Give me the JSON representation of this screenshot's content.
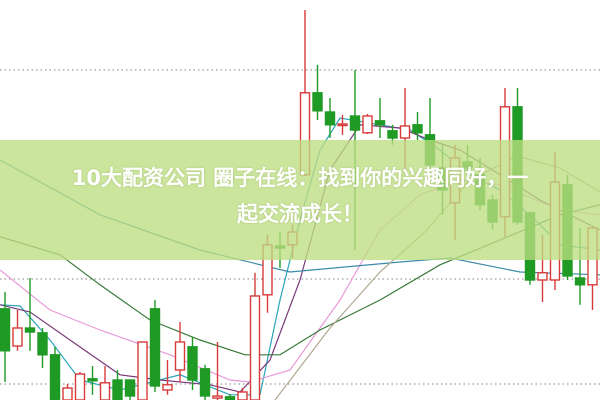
{
  "headline": {
    "line1": "10大配资公司 圈子在线：找到你的兴趣同好，一",
    "line2": "起交流成长！"
  },
  "chart_data": {
    "type": "candlestick",
    "title": "",
    "xlabel": "",
    "ylabel": "",
    "ylim": [
      0,
      100
    ],
    "grid": {
      "style": "dotted",
      "values": [
        82.5,
        30.25,
        4
      ]
    },
    "colors": {
      "up": "#d83a3a",
      "down": "#1f9a24",
      "grid": "#9a9a9a",
      "banner": "#bede82"
    },
    "candles_ohlc": [
      [
        22.8,
        27,
        4.5,
        12.3
      ],
      [
        13.5,
        22.5,
        12.3,
        18
      ],
      [
        18,
        30.5,
        12.3,
        17
      ],
      [
        16.8,
        18,
        8,
        11.3
      ],
      [
        11.3,
        13.3,
        0,
        0
      ],
      [
        0,
        4,
        0,
        3
      ],
      [
        0,
        7,
        0,
        6.5
      ],
      [
        5.3,
        8.5,
        1.3,
        4.8
      ],
      [
        0,
        8.5,
        0,
        4.3
      ],
      [
        5,
        7.5,
        0,
        0
      ],
      [
        5,
        5,
        0,
        1
      ],
      [
        0,
        14.5,
        0,
        14.5
      ],
      [
        22.8,
        25,
        2,
        3.5
      ],
      [
        2.5,
        10,
        1.3,
        3.8
      ],
      [
        7.5,
        19.5,
        4.5,
        14.5
      ],
      [
        13.3,
        15.8,
        2.5,
        5
      ],
      [
        7.8,
        8.8,
        0,
        1
      ],
      [
        0.5,
        14.5,
        0,
        1
      ],
      [
        0.8,
        1.5,
        0,
        0
      ],
      [
        0,
        3,
        0,
        2
      ],
      [
        0,
        31.8,
        0,
        26
      ],
      [
        26.3,
        41.3,
        21.8,
        38.8
      ],
      [
        38.5,
        42,
        33,
        38
      ],
      [
        38.8,
        43.8,
        35.5,
        42
      ],
      [
        56.3,
        97.5,
        56,
        76.8
      ],
      [
        76.8,
        83.8,
        70,
        72.3
      ],
      [
        72,
        75.5,
        65.5,
        68.8
      ],
      [
        68.8,
        71.3,
        66.3,
        69
      ],
      [
        71,
        82.5,
        37.5,
        67.5
      ],
      [
        66.8,
        71.5,
        66.5,
        71
      ],
      [
        69.8,
        75.5,
        65.5,
        68.8
      ],
      [
        67.3,
        68.8,
        63.8,
        65.5
      ],
      [
        65.5,
        78,
        56.3,
        68.5
      ],
      [
        68.8,
        72,
        65,
        66.8
      ],
      [
        66.3,
        75.5,
        57.5,
        58.8
      ],
      [
        58,
        63.8,
        46.3,
        52.5
      ],
      [
        49.3,
        63.8,
        40,
        60.5
      ],
      [
        59.5,
        63.8,
        55,
        58
      ],
      [
        56.3,
        60.5,
        47.5,
        48.8
      ],
      [
        50,
        51.3,
        42.5,
        44.5
      ],
      [
        45.8,
        78,
        40.8,
        73.3
      ],
      [
        73.3,
        78,
        43.8,
        44.5
      ],
      [
        46.8,
        46.8,
        28.8,
        30
      ],
      [
        30,
        41.3,
        24.5,
        31.8
      ],
      [
        30,
        62,
        27.5,
        54.5
      ],
      [
        53.8,
        56.3,
        30,
        31
      ],
      [
        30.5,
        43,
        23.8,
        28.8
      ],
      [
        28.8,
        43,
        22.5,
        43
      ]
    ],
    "moving_averages": [
      {
        "color": "#2aa6b8",
        "points": [
          [
            -0.4,
            23.8
          ],
          [
            1.2,
            23.5
          ],
          [
            3.6,
            15
          ],
          [
            6,
            5
          ],
          [
            9.2,
            2.5
          ],
          [
            14,
            6.3
          ],
          [
            18,
            1.3
          ],
          [
            20.4,
            1.3
          ],
          [
            22,
            25
          ],
          [
            23.6,
            45
          ],
          [
            25.2,
            62.5
          ],
          [
            26.8,
            70.5
          ],
          [
            30,
            68.8
          ],
          [
            32.4,
            67.5
          ],
          [
            34.8,
            62.5
          ],
          [
            37.2,
            56.3
          ],
          [
            39.6,
            52.5
          ],
          [
            42,
            46.3
          ],
          [
            44.4,
            38.8
          ],
          [
            47.6,
            37.5
          ]
        ]
      },
      {
        "color": "#7a3a7a",
        "points": [
          [
            -0.4,
            23.8
          ],
          [
            2,
            22
          ],
          [
            5.2,
            15
          ],
          [
            9.2,
            6.3
          ],
          [
            12.4,
            5
          ],
          [
            16.4,
            3.8
          ],
          [
            18.8,
            2
          ],
          [
            21.2,
            10
          ],
          [
            23.6,
            30
          ],
          [
            26,
            57.5
          ],
          [
            28.4,
            68.8
          ],
          [
            31.6,
            68
          ],
          [
            34,
            65
          ],
          [
            36.4,
            62.5
          ],
          [
            39.6,
            56.3
          ],
          [
            42.8,
            50
          ],
          [
            47.6,
            42.5
          ]
        ]
      },
      {
        "color": "#e89ad8",
        "points": [
          [
            -0.4,
            32.5
          ],
          [
            3.6,
            22.5
          ],
          [
            7.6,
            17.5
          ],
          [
            13.2,
            11.3
          ],
          [
            18,
            5
          ],
          [
            19.6,
            4.5
          ],
          [
            22.8,
            7.5
          ],
          [
            26.8,
            25
          ],
          [
            30,
            42.5
          ],
          [
            33.2,
            51.3
          ],
          [
            36.4,
            55
          ],
          [
            39.6,
            53.8
          ],
          [
            44.4,
            47.5
          ],
          [
            47.6,
            46.3
          ]
        ]
      },
      {
        "color": "#3a7a3a",
        "points": [
          [
            -0.4,
            40.8
          ],
          [
            4.4,
            36.3
          ],
          [
            7.6,
            28.8
          ],
          [
            11.6,
            20
          ],
          [
            15.6,
            15
          ],
          [
            19.2,
            11.3
          ],
          [
            22,
            11.3
          ],
          [
            25.2,
            17.5
          ],
          [
            30,
            25
          ],
          [
            34.8,
            33.8
          ],
          [
            39.6,
            40
          ],
          [
            44.4,
            46.3
          ],
          [
            47.6,
            48.8
          ]
        ]
      },
      {
        "color": "#3a8aa8",
        "points": [
          [
            -0.4,
            60
          ],
          [
            7.6,
            46.3
          ],
          [
            15.6,
            37.5
          ],
          [
            22.8,
            32
          ],
          [
            31.6,
            34.5
          ],
          [
            35.6,
            35.5
          ],
          [
            41.2,
            32
          ],
          [
            47.6,
            31.3
          ]
        ]
      },
      {
        "color": "#b0a890",
        "points": [
          [
            21.6,
            0
          ],
          [
            26,
            18
          ],
          [
            30,
            32
          ],
          [
            33.6,
            42
          ],
          [
            37.2,
            55
          ],
          [
            41,
            61
          ],
          [
            44.4,
            58
          ],
          [
            47.6,
            52
          ]
        ]
      }
    ]
  }
}
